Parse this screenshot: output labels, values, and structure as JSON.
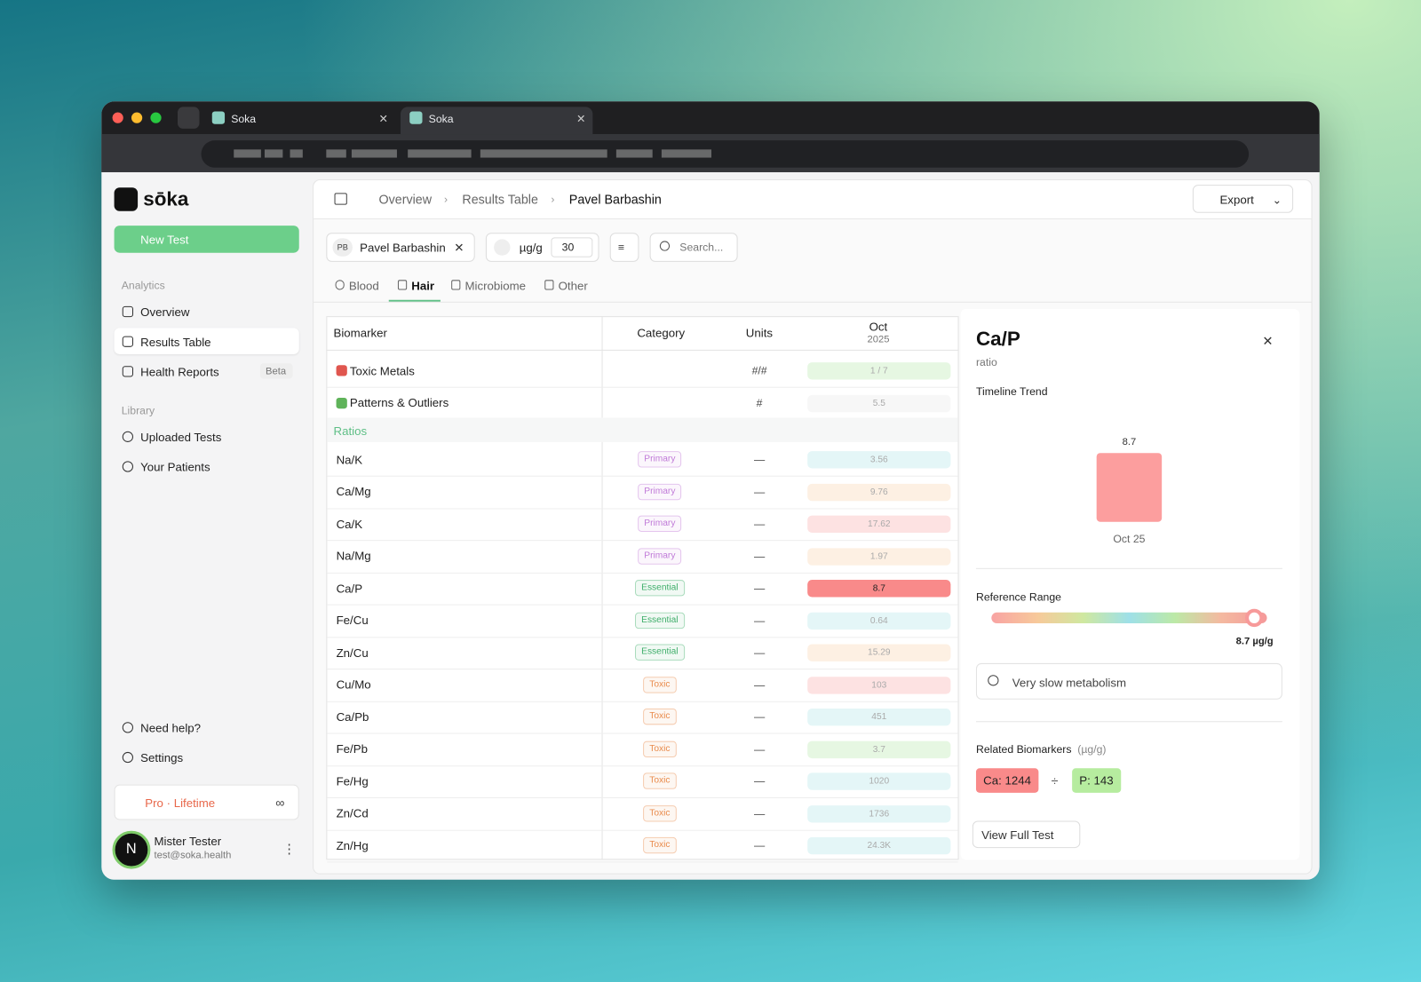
{
  "browser": {
    "tabs": [
      "Soka",
      "Soka"
    ]
  },
  "sidebar": {
    "brand": "sōka",
    "new_test": "New Test",
    "analytics_label": "Analytics",
    "nav": [
      "Overview",
      "Results Table",
      "Health Reports"
    ],
    "beta": "Beta",
    "library_label": "Library",
    "library": [
      "Uploaded Tests",
      "Your Patients"
    ],
    "help": "Need help?",
    "settings": "Settings",
    "plan": "Pro · Lifetime",
    "user": {
      "initial": "N",
      "name": "Mister Tester",
      "email": "test@soka.health"
    }
  },
  "header": {
    "breadcrumb": [
      "Overview",
      "Results Table",
      "Pavel Barbashin"
    ],
    "export": "Export"
  },
  "filters": {
    "patient_initials": "PB",
    "patient": "Pavel Barbashin",
    "unit": "µg/g",
    "count": "30",
    "search": "Search..."
  },
  "tabs": [
    "Blood",
    "Hair",
    "Microbiome",
    "Other"
  ],
  "table": {
    "columns": [
      "Biomarker",
      "Category",
      "Units"
    ],
    "date": {
      "month": "Oct",
      "year": "2025"
    },
    "badge_colors": {
      "Primary": "#c07ad8",
      "Essential": "#3fae6a",
      "Toxic": "#e98a4a"
    },
    "rows": [
      {
        "name": "Toxic Metals",
        "units": "#/#",
        "value": "1 / 7",
        "color": "#e6f7e2",
        "icon": "#e0564f"
      },
      {
        "name": "Patterns & Outliers",
        "units": "#",
        "value": "5.5",
        "color": "#f7f7f7",
        "icon": "#5fb35a"
      },
      {
        "section": "Ratios"
      },
      {
        "name": "Na/K",
        "category": "Primary",
        "units": "—",
        "value": "3.56",
        "color": "#e4f6f7"
      },
      {
        "name": "Ca/Mg",
        "category": "Primary",
        "units": "—",
        "value": "9.76",
        "color": "#fdf0e3"
      },
      {
        "name": "Ca/K",
        "category": "Primary",
        "units": "—",
        "value": "17.62",
        "color": "#fde2e2"
      },
      {
        "name": "Na/Mg",
        "category": "Primary",
        "units": "—",
        "value": "1.97",
        "color": "#fdf0e3"
      },
      {
        "name": "Ca/P",
        "category": "Essential",
        "units": "—",
        "value": "8.7",
        "color": "#f98a8a",
        "highlight": true
      },
      {
        "name": "Fe/Cu",
        "category": "Essential",
        "units": "—",
        "value": "0.64",
        "color": "#e4f6f7"
      },
      {
        "name": "Zn/Cu",
        "category": "Essential",
        "units": "—",
        "value": "15.29",
        "color": "#fdf0e3"
      },
      {
        "name": "Cu/Mo",
        "category": "Toxic",
        "units": "—",
        "value": "103",
        "color": "#fde2e2"
      },
      {
        "name": "Ca/Pb",
        "category": "Toxic",
        "units": "—",
        "value": "451",
        "color": "#e4f6f7"
      },
      {
        "name": "Fe/Pb",
        "category": "Toxic",
        "units": "—",
        "value": "3.7",
        "color": "#e6f7e2"
      },
      {
        "name": "Fe/Hg",
        "category": "Toxic",
        "units": "—",
        "value": "1020",
        "color": "#e4f6f7"
      },
      {
        "name": "Zn/Cd",
        "category": "Toxic",
        "units": "—",
        "value": "1736",
        "color": "#e4f6f7"
      },
      {
        "name": "Zn/Hg",
        "category": "Toxic",
        "units": "—",
        "value": "24.3K",
        "color": "#e4f6f7"
      }
    ]
  },
  "detail": {
    "title": "Ca/P",
    "unit": "ratio",
    "trend_label": "Timeline Trend",
    "trend": {
      "value": 8.7,
      "label": "Oct 25",
      "color": "#fc9e9e"
    },
    "range_label": "Reference Range",
    "range_value": "8.7 µg/g",
    "note": "Very slow metabolism",
    "related_label": "Related Biomarkers",
    "related_unit": "(µg/g)",
    "related": [
      {
        "label": "Ca: 1244",
        "color": "#f98a8a"
      },
      {
        "label": "P: 143",
        "color": "#b6ec9f"
      }
    ],
    "divide": "÷",
    "view": "View Full Test"
  }
}
